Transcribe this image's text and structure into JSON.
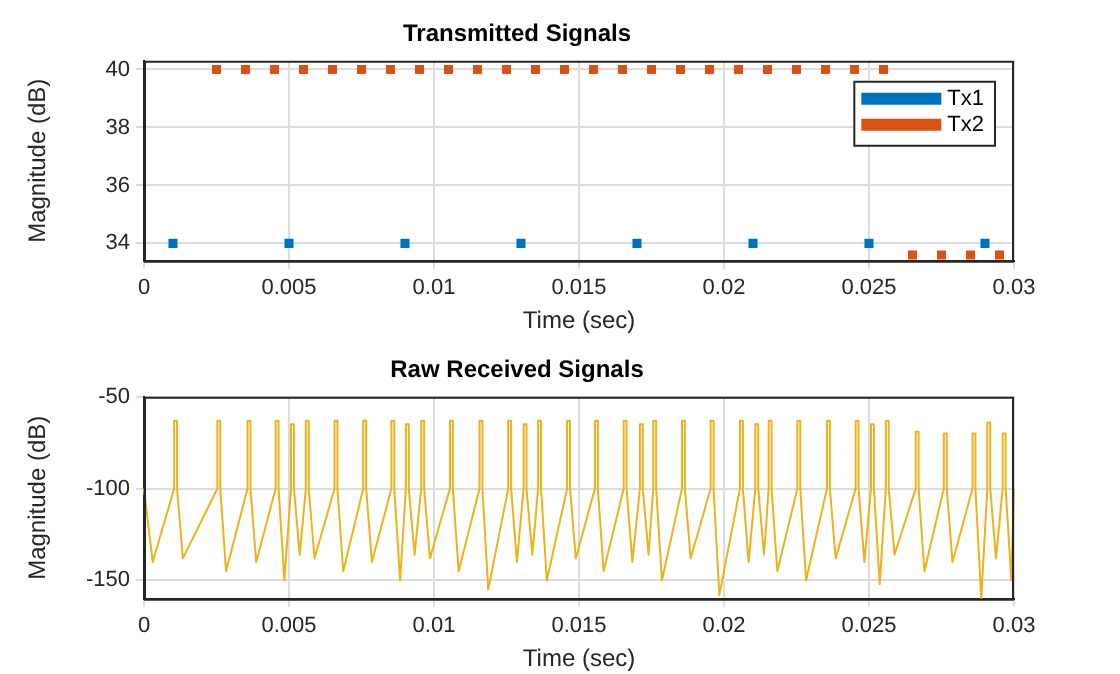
{
  "chart_data": [
    {
      "type": "scatter",
      "title": "Transmitted Signals",
      "xlabel": "Time (sec)",
      "ylabel": "Magnitude (dB)",
      "xlim": [
        0,
        0.03
      ],
      "xticks": [
        0,
        0.005,
        0.01,
        0.015,
        0.02,
        0.025,
        0.03
      ],
      "ylim": [
        33.4,
        40.3
      ],
      "yticks": [
        34,
        36,
        38,
        40
      ],
      "grid": true,
      "legend": "top right",
      "marker": "square",
      "series": [
        {
          "name": "Tx1",
          "color": "#0072bd",
          "x": [
            0.001,
            0.005,
            0.009,
            0.013,
            0.017,
            0.021,
            0.025,
            0.029
          ],
          "values": [
            34,
            34,
            34,
            34,
            34,
            34,
            34,
            34
          ]
        },
        {
          "name": "Tx2",
          "color": "#d95319",
          "x": [
            0.0025,
            0.0035,
            0.0045,
            0.0055,
            0.0065,
            0.0075,
            0.0085,
            0.0095,
            0.0105,
            0.0115,
            0.0125,
            0.0135,
            0.0145,
            0.0155,
            0.0165,
            0.0175,
            0.0185,
            0.0195,
            0.0205,
            0.0215,
            0.0225,
            0.0235,
            0.0245,
            0.0255,
            0.0265,
            0.0275,
            0.0285,
            0.0295
          ],
          "values": [
            40,
            40,
            40,
            40,
            40,
            40,
            40,
            40,
            40,
            40,
            40,
            40,
            40,
            40,
            40,
            40,
            40,
            40,
            40,
            40,
            40,
            40,
            40,
            40,
            33.6,
            33.6,
            33.6,
            33.6
          ]
        }
      ]
    },
    {
      "type": "line",
      "title": "Raw Received Signals",
      "xlabel": "Time (sec)",
      "ylabel": "Magnitude (dB)",
      "xlim": [
        0,
        0.03
      ],
      "xticks": [
        0,
        0.005,
        0.01,
        0.015,
        0.02,
        0.025,
        0.03
      ],
      "ylim": [
        -160,
        -50
      ],
      "yticks": [
        -150,
        -100,
        -50
      ],
      "grid": true,
      "series": [
        {
          "color": "#edb120",
          "x": [
            0,
            0.0003,
            0.00104,
            0.00104,
            0.00114,
            0.00114,
            0.00134,
            0.00253,
            0.00253,
            0.00263,
            0.00263,
            0.00283,
            0.00357,
            0.00357,
            0.00367,
            0.00367,
            0.00387,
            0.00454,
            0.00454,
            0.00464,
            0.00464,
            0.00484,
            0.00507,
            0.00507,
            0.00517,
            0.00517,
            0.00537,
            0.00558,
            0.00558,
            0.00568,
            0.00568,
            0.00588,
            0.00657,
            0.00657,
            0.00667,
            0.00667,
            0.00687,
            0.00756,
            0.00756,
            0.00766,
            0.00766,
            0.00786,
            0.00853,
            0.00853,
            0.00863,
            0.00863,
            0.00883,
            0.00903,
            0.00903,
            0.00913,
            0.00913,
            0.00933,
            0.00956,
            0.00956,
            0.00966,
            0.00966,
            0.00986,
            0.01055,
            0.01055,
            0.01065,
            0.01065,
            0.01085,
            0.01157,
            0.01157,
            0.01167,
            0.01167,
            0.01187,
            0.01256,
            0.01256,
            0.01266,
            0.01266,
            0.01286,
            0.01309,
            0.01309,
            0.01319,
            0.01319,
            0.01339,
            0.01359,
            0.01359,
            0.01369,
            0.01369,
            0.01389,
            0.01459,
            0.01459,
            0.01469,
            0.01469,
            0.01489,
            0.01555,
            0.01555,
            0.01565,
            0.01565,
            0.01585,
            0.01654,
            0.01654,
            0.01664,
            0.01664,
            0.01684,
            0.0171,
            0.0171,
            0.0172,
            0.0172,
            0.0174,
            0.01756,
            0.01756,
            0.01766,
            0.01766,
            0.01786,
            0.01855,
            0.01855,
            0.01865,
            0.01865,
            0.01885,
            0.01954,
            0.01954,
            0.01964,
            0.01964,
            0.01984,
            0.02055,
            0.02055,
            0.02065,
            0.02065,
            0.02085,
            0.02108,
            0.02108,
            0.02118,
            0.02118,
            0.02138,
            0.02154,
            0.02154,
            0.02164,
            0.02164,
            0.02184,
            0.02253,
            0.02253,
            0.02263,
            0.02263,
            0.02283,
            0.02355,
            0.02355,
            0.02365,
            0.02365,
            0.02385,
            0.02454,
            0.02454,
            0.02464,
            0.02464,
            0.02484,
            0.02507,
            0.02507,
            0.02517,
            0.02517,
            0.02537,
            0.02558,
            0.02558,
            0.02568,
            0.02568,
            0.02588,
            0.02661,
            0.02661,
            0.02671,
            0.02671,
            0.02691,
            0.02758,
            0.02758,
            0.02768,
            0.02768,
            0.02788,
            0.02857,
            0.02857,
            0.02867,
            0.02867,
            0.02887,
            0.02908,
            0.02908,
            0.02918,
            0.02918,
            0.02938,
            0.02961,
            0.02961,
            0.02971,
            0.02971,
            0.02991,
            0.03
          ],
          "values": [
            -100,
            -140,
            -100,
            -63,
            -63,
            -100,
            -138,
            -100,
            -63,
            -63,
            -100,
            -145,
            -100,
            -63,
            -63,
            -100,
            -140,
            -100,
            -63,
            -63,
            -100,
            -150,
            -100,
            -65,
            -65,
            -100,
            -136,
            -100,
            -63,
            -63,
            -100,
            -138,
            -100,
            -63,
            -63,
            -100,
            -145,
            -100,
            -63,
            -63,
            -100,
            -140,
            -100,
            -63,
            -63,
            -100,
            -150,
            -100,
            -65,
            -65,
            -100,
            -136,
            -100,
            -63,
            -63,
            -100,
            -138,
            -100,
            -63,
            -63,
            -100,
            -145,
            -100,
            -63,
            -63,
            -100,
            -155,
            -100,
            -63,
            -63,
            -100,
            -140,
            -100,
            -65,
            -65,
            -100,
            -136,
            -100,
            -63,
            -63,
            -100,
            -150,
            -100,
            -63,
            -63,
            -100,
            -138,
            -100,
            -63,
            -63,
            -100,
            -145,
            -100,
            -63,
            -63,
            -100,
            -140,
            -100,
            -65,
            -65,
            -100,
            -136,
            -100,
            -63,
            -63,
            -100,
            -150,
            -100,
            -63,
            -63,
            -100,
            -138,
            -100,
            -63,
            -63,
            -100,
            -158,
            -100,
            -63,
            -63,
            -100,
            -140,
            -100,
            -65,
            -65,
            -100,
            -136,
            -100,
            -63,
            -63,
            -100,
            -145,
            -100,
            -63,
            -63,
            -100,
            -150,
            -100,
            -63,
            -63,
            -100,
            -138,
            -100,
            -63,
            -63,
            -100,
            -140,
            -100,
            -65,
            -65,
            -100,
            -152,
            -100,
            -63,
            -63,
            -100,
            -136,
            -100,
            -69,
            -69,
            -100,
            -145,
            -100,
            -70,
            -70,
            -100,
            -140,
            -100,
            -70,
            -70,
            -100,
            -160,
            -100,
            -64,
            -64,
            -100,
            -138,
            -100,
            -70,
            -70,
            -100,
            -150,
            -100
          ]
        }
      ]
    }
  ]
}
